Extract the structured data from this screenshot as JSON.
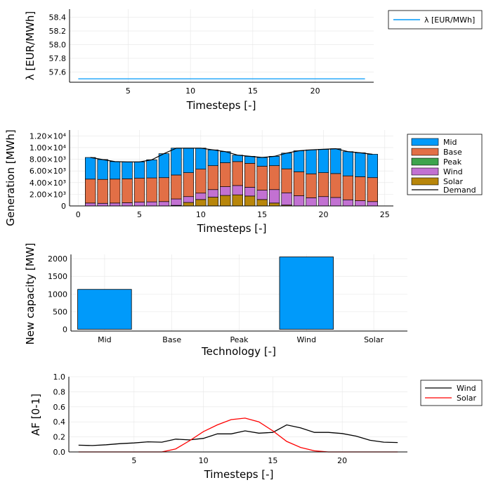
{
  "chart_data": [
    {
      "type": "line",
      "ylabel": "λ [EUR/MWh]",
      "xlabel": "Timesteps [-]",
      "xlim": [
        0.3,
        24.7
      ],
      "ylim": [
        57.45,
        58.52
      ],
      "xticks": [
        5,
        10,
        15,
        20
      ],
      "yticks": [
        57.6,
        57.8,
        58.0,
        58.2,
        58.4
      ],
      "ytick_labels": [
        "57.6",
        "57.8",
        "58.0",
        "58.2",
        "58.4"
      ],
      "legend_position": "top-right",
      "series": [
        {
          "name": "λ [EUR/MWh]",
          "color": "#009AFA",
          "x": [
            1,
            2,
            3,
            4,
            5,
            6,
            7,
            8,
            9,
            10,
            11,
            12,
            13,
            14,
            15,
            16,
            17,
            18,
            19,
            20,
            21,
            22,
            23,
            24
          ],
          "values": [
            57.5,
            57.5,
            57.5,
            57.5,
            57.5,
            57.5,
            57.5,
            57.5,
            57.5,
            57.5,
            57.5,
            57.5,
            57.5,
            57.5,
            57.5,
            57.5,
            57.5,
            57.5,
            57.5,
            57.5,
            57.5,
            57.5,
            57.5,
            57.5
          ]
        }
      ]
    },
    {
      "type": "bar",
      "stacked": true,
      "ylabel": "Generation [MWh]",
      "xlabel": "Timesteps [-]",
      "xlim": [
        -0.7,
        25.7
      ],
      "ylim": [
        0,
        13000
      ],
      "xticks": [
        0,
        5,
        10,
        15,
        20,
        25
      ],
      "yticks": [
        0,
        2000,
        4000,
        6000,
        8000,
        10000,
        12000
      ],
      "ytick_labels": [
        "0",
        "2.00×10³",
        "4.00×10³",
        "6.00×10³",
        "8.00×10³",
        "1.00×10⁴",
        "1.20×10⁴"
      ],
      "legend_position": "top-right",
      "categories": [
        1,
        2,
        3,
        4,
        5,
        6,
        7,
        8,
        9,
        10,
        11,
        12,
        13,
        14,
        15,
        16,
        17,
        18,
        19,
        20,
        21,
        22,
        23,
        24
      ],
      "series": [
        {
          "name": "Solar",
          "color": "#B8860B",
          "values": [
            0,
            0,
            0,
            0,
            0,
            0,
            0,
            100,
            600,
            1100,
            1500,
            1800,
            1900,
            1700,
            1100,
            500,
            150,
            0,
            0,
            0,
            0,
            0,
            0,
            0
          ]
        },
        {
          "name": "Wind",
          "color": "#C271D2",
          "values": [
            500,
            450,
            500,
            550,
            650,
            700,
            750,
            1100,
            1000,
            1100,
            1300,
            1500,
            1600,
            1500,
            1600,
            2300,
            2100,
            1750,
            1400,
            1600,
            1450,
            1050,
            900,
            750
          ]
        },
        {
          "name": "Peak",
          "color": "#3DA44D",
          "values": [
            0,
            0,
            0,
            0,
            0,
            0,
            0,
            0,
            0,
            0,
            0,
            0,
            0,
            0,
            0,
            0,
            0,
            0,
            0,
            0,
            0,
            0,
            0,
            0
          ]
        },
        {
          "name": "Base",
          "color": "#E26F46",
          "values": [
            4100,
            4100,
            4100,
            4100,
            4100,
            4100,
            4100,
            4100,
            4100,
            4100,
            4100,
            4100,
            4100,
            4100,
            4100,
            4100,
            4100,
            4100,
            4100,
            4100,
            4100,
            4100,
            4100,
            4100
          ]
        },
        {
          "name": "Mid",
          "color": "#009AFA",
          "values": [
            3700,
            3400,
            3000,
            2900,
            2800,
            3100,
            4100,
            4600,
            4200,
            3600,
            2700,
            1900,
            1100,
            1200,
            1500,
            1600,
            2700,
            3600,
            4100,
            4000,
            4250,
            4150,
            4100,
            4000
          ]
        }
      ],
      "demand": {
        "name": "Demand",
        "color": "#000000",
        "values": [
          8300,
          7950,
          7600,
          7550,
          7550,
          7900,
          8950,
          9900,
          9900,
          9900,
          9600,
          9300,
          8700,
          8500,
          8300,
          8500,
          9050,
          9450,
          9600,
          9700,
          9800,
          9300,
          9100,
          8850
        ]
      }
    },
    {
      "type": "bar",
      "ylabel": "New capacity [MW]",
      "xlabel": "Technology [-]",
      "ylim": [
        -50,
        2120
      ],
      "yticks": [
        0,
        500,
        1000,
        1500,
        2000
      ],
      "ytick_labels": [
        "0",
        "500",
        "1000",
        "1500",
        "2000"
      ],
      "categories": [
        "Mid",
        "Base",
        "Peak",
        "Wind",
        "Solar"
      ],
      "values": [
        1130,
        0,
        0,
        2050,
        0
      ],
      "color": "#009AFA"
    },
    {
      "type": "line",
      "ylabel": "AF [0-1]",
      "xlabel": "Timesteps [-]",
      "xlim": [
        0.3,
        24.7
      ],
      "ylim": [
        0,
        1.0
      ],
      "xticks": [
        5,
        10,
        15,
        20
      ],
      "yticks": [
        0,
        0.2,
        0.4,
        0.6,
        0.8,
        1.0
      ],
      "ytick_labels": [
        "0.0",
        "0.2",
        "0.4",
        "0.6",
        "0.8",
        "1.0"
      ],
      "legend_position": "top-right",
      "series": [
        {
          "name": "Wind",
          "color": "#000000",
          "x": [
            1,
            2,
            3,
            4,
            5,
            6,
            7,
            8,
            9,
            10,
            11,
            12,
            13,
            14,
            15,
            16,
            17,
            18,
            19,
            20,
            21,
            22,
            23,
            24
          ],
          "values": [
            0.09,
            0.085,
            0.095,
            0.11,
            0.12,
            0.135,
            0.13,
            0.17,
            0.16,
            0.18,
            0.24,
            0.24,
            0.28,
            0.25,
            0.26,
            0.36,
            0.32,
            0.26,
            0.26,
            0.245,
            0.21,
            0.155,
            0.13,
            0.125
          ]
        },
        {
          "name": "Solar",
          "color": "#FF0000",
          "x": [
            1,
            2,
            3,
            4,
            5,
            6,
            7,
            8,
            9,
            10,
            11,
            12,
            13,
            14,
            15,
            16,
            17,
            18,
            19,
            20,
            21,
            22,
            23,
            24
          ],
          "values": [
            0,
            0,
            0,
            0,
            0,
            0,
            0,
            0.04,
            0.15,
            0.27,
            0.36,
            0.43,
            0.45,
            0.4,
            0.28,
            0.14,
            0.06,
            0.015,
            0,
            0,
            0,
            0,
            0,
            0
          ]
        }
      ]
    }
  ]
}
